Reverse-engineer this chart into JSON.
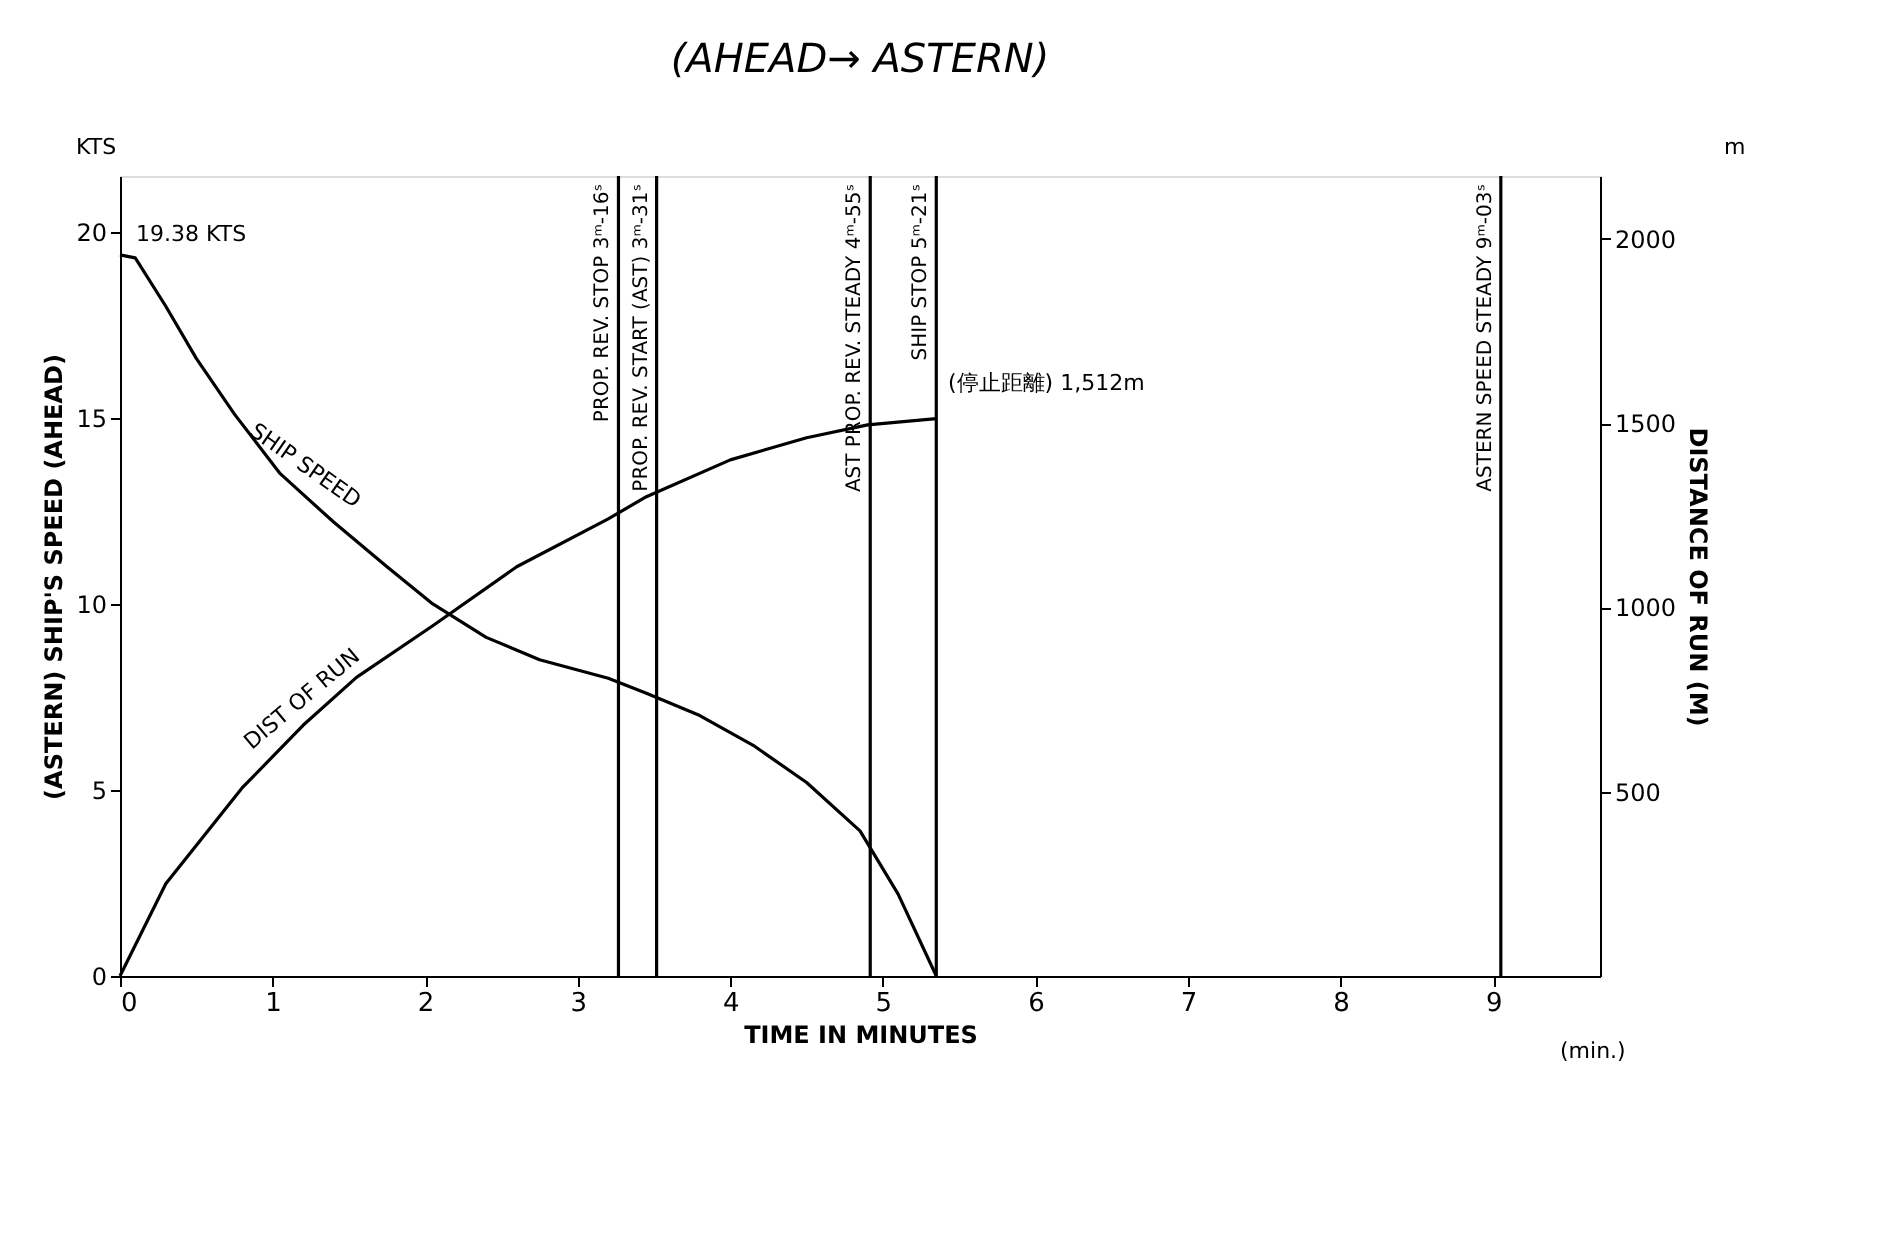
{
  "chart_data": {
    "type": "line",
    "title": "(AHEAD→ ASTERN)",
    "xlabel": "TIME IN MINUTES",
    "ylabel": "(ASTERN)   SHIP'S SPEED   (AHEAD)",
    "y2label": "DISTANCE OF RUN  (M)",
    "xlim": [
      0,
      9.7
    ],
    "xticks": [
      0,
      1,
      2,
      3,
      4,
      5,
      6,
      7,
      8,
      9
    ],
    "ylim": [
      0,
      21.5
    ],
    "yticks": [
      0,
      5,
      10,
      15,
      20
    ],
    "y2lim": [
      0,
      2170
    ],
    "y2ticks": [
      500,
      1000,
      1500,
      2000
    ],
    "grid": false,
    "marker": "none",
    "line_style": "solid",
    "series": [
      {
        "name": "SHIP SPEED",
        "color": "#000000",
        "x": [
          0,
          0.1,
          0.3,
          0.5,
          0.75,
          1.05,
          1.4,
          1.75,
          2.05,
          2.4,
          2.75,
          3.2,
          3.45,
          3.8,
          4.15,
          4.5,
          4.85,
          5.1,
          5.35
        ],
        "values": [
          19.38,
          19.3,
          18.0,
          16.6,
          15.1,
          13.5,
          12.2,
          11.0,
          10.0,
          9.1,
          8.5,
          8.0,
          7.6,
          7.0,
          6.2,
          5.2,
          3.9,
          2.2,
          0
        ]
      },
      {
        "name": "DIST OF RUN",
        "color": "#000000",
        "axis": "y2",
        "x": [
          0,
          0.3,
          0.8,
          1.2,
          1.55,
          2.05,
          2.6,
          3.2,
          3.45,
          4.0,
          4.5,
          4.9,
          5.35
        ],
        "values": [
          0,
          250,
          510,
          680,
          810,
          950,
          1110,
          1240,
          1300,
          1400,
          1460,
          1495,
          1512
        ]
      }
    ],
    "ref_lines": [
      {
        "axis": "x",
        "value": 3.267,
        "label": "PROP. REV. STOP   3ᵐ-16ˢ",
        "color": "#000000"
      },
      {
        "axis": "x",
        "value": 3.517,
        "label": "PROP. REV. START (AST)   3ᵐ-31ˢ",
        "color": "#000000"
      },
      {
        "axis": "x",
        "value": 4.917,
        "label": "AST PROP. REV. STEADY   4ᵐ-55ˢ",
        "color": "#000000"
      },
      {
        "axis": "x",
        "value": 5.35,
        "label": "SHIP STOP   5ᵐ-21ˢ",
        "color": "#000000"
      },
      {
        "axis": "x",
        "value": 9.05,
        "label": "ASTERN SPEED STEADY   9ᵐ-03ˢ",
        "color": "#000000"
      }
    ],
    "annotations": [
      {
        "text": "19.38 KTS",
        "x": 0,
        "y": 19.38
      },
      "(停止距離)  1,512m",
      "KTS",
      "(min.)",
      "m"
    ]
  }
}
